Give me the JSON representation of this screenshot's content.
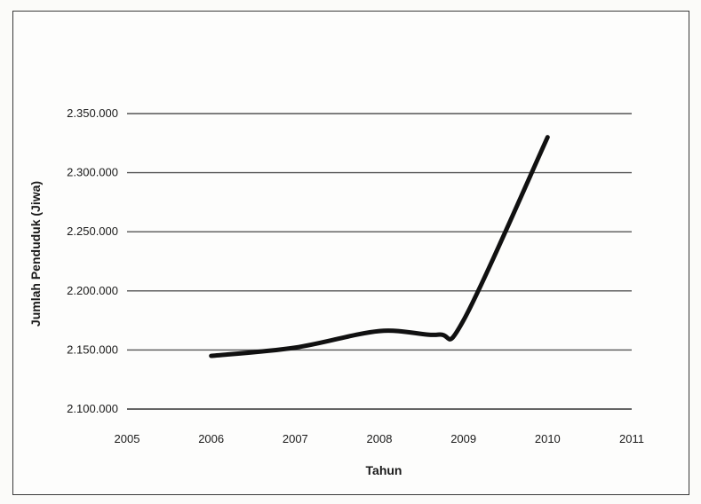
{
  "chart_data": {
    "type": "line",
    "xlabel": "Tahun",
    "ylabel": "Jumlah Penduduk (Jiwa)",
    "xlim": [
      2005,
      2011
    ],
    "ylim": [
      2100000,
      2350000
    ],
    "x_ticks": [
      "2005",
      "2006",
      "2007",
      "2008",
      "2009",
      "2010",
      "2011"
    ],
    "y_ticks": [
      "2.100.000",
      "2.150.000",
      "2.200.000",
      "2.250.000",
      "2.300.000",
      "2.350.000"
    ],
    "grid": true,
    "series": [
      {
        "x": [
          2006,
          2007,
          2008,
          2008.7,
          2009,
          2010
        ],
        "y": [
          2145000,
          2152000,
          2166000,
          2163000,
          2175000,
          2330000
        ],
        "color": "#111111"
      }
    ]
  },
  "colors": {
    "line": "#111111",
    "grid": "#555555",
    "axis": "#333333"
  }
}
